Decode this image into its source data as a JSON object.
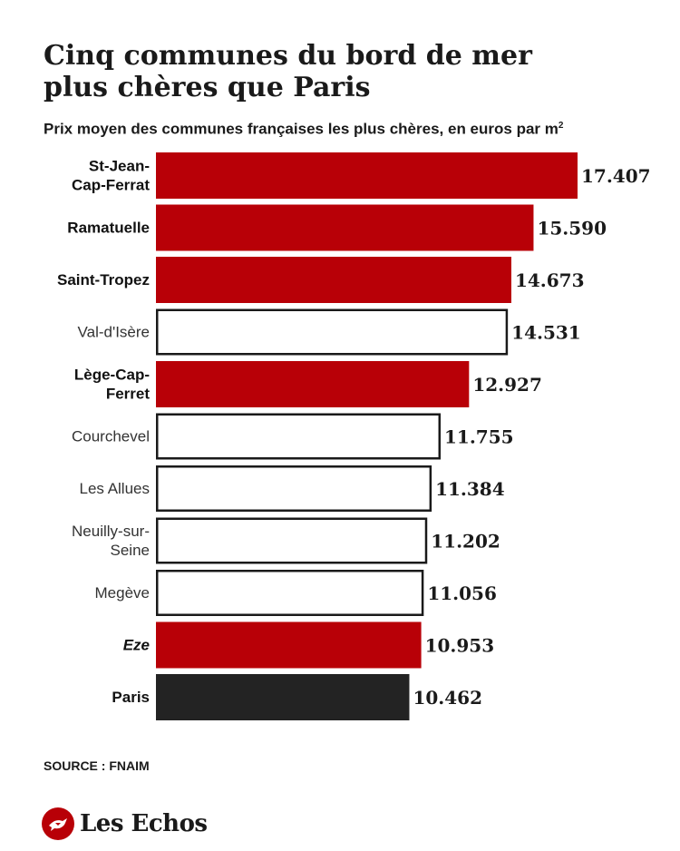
{
  "header": {
    "title": "Cinq communes du bord de mer plus chères que Paris",
    "subtitle": "Prix moyen des communes françaises les plus chères, en euros par m",
    "subtitle_superscript": "2"
  },
  "footer": {
    "source": "SOURCE : FNAIM",
    "logo_text": "Les Echos"
  },
  "colors": {
    "seaside": "#b80007",
    "other": "#ffffff",
    "paris": "#232323",
    "text": "#1a1a1a"
  },
  "chart_data": {
    "type": "bar",
    "orientation": "horizontal",
    "title": "Cinq communes du bord de mer plus chères que Paris",
    "subtitle": "Prix moyen des communes françaises les plus chères, en euros par m²",
    "categories": [
      "St-Jean-Cap-Ferrat",
      "Ramatuelle",
      "Saint-Tropez",
      "Val-d'Isère",
      "Lège-Cap-Ferret",
      "Courchevel",
      "Les Allues",
      "Neuilly-sur-Seine",
      "Megève",
      "Eze",
      "Paris"
    ],
    "category_labels": [
      [
        "St-Jean-",
        "Cap-Ferrat"
      ],
      [
        "Ramatuelle"
      ],
      [
        "Saint-Tropez"
      ],
      [
        "Val-d'Isère"
      ],
      [
        "Lège-Cap-",
        "Ferret"
      ],
      [
        "Courchevel"
      ],
      [
        "Les Allues"
      ],
      [
        "Neuilly-sur-",
        "Seine"
      ],
      [
        "Megève"
      ],
      [
        "Eze"
      ],
      [
        "Paris"
      ]
    ],
    "values": [
      17407,
      15590,
      14673,
      14531,
      12927,
      11755,
      11384,
      11202,
      11056,
      10953,
      10462
    ],
    "value_labels": [
      "17.407",
      "15.590",
      "14.673",
      "14.531",
      "12.927",
      "11.755",
      "11.384",
      "11.202",
      "11.056",
      "10.953",
      "10.462"
    ],
    "groups": [
      "seaside",
      "seaside",
      "seaside",
      "other",
      "seaside",
      "other",
      "other",
      "other",
      "other",
      "seaside",
      "paris"
    ],
    "xlim": [
      0,
      17407
    ],
    "xlabel": "",
    "ylabel": "",
    "grid": false,
    "legend": "none"
  }
}
